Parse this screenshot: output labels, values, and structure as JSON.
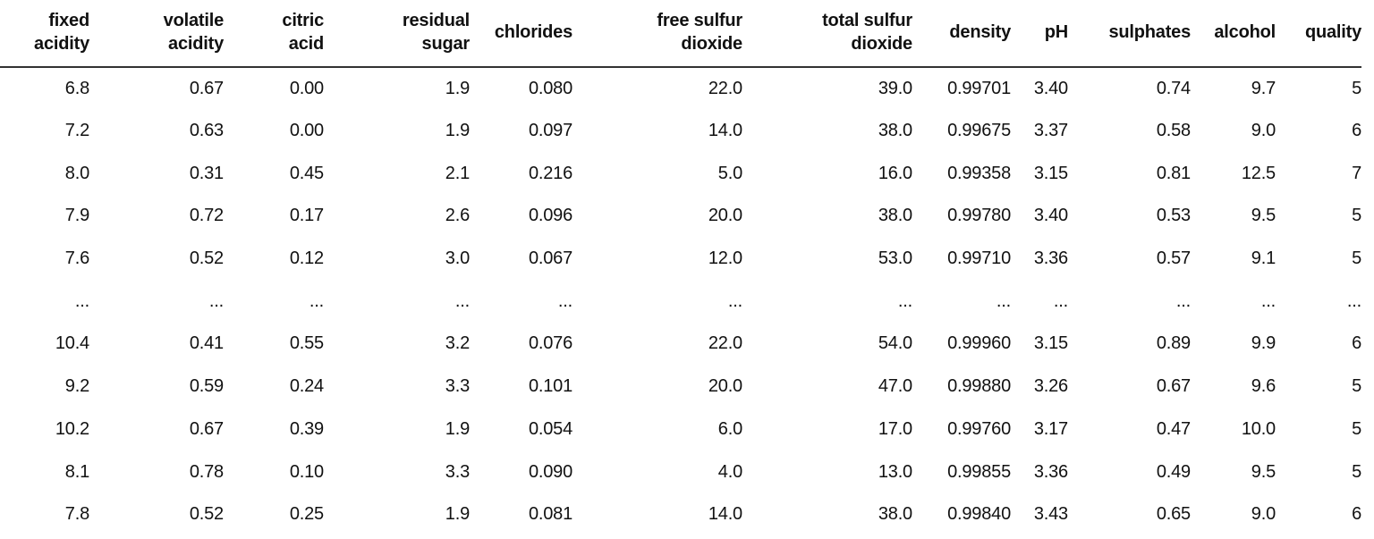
{
  "colors": {
    "background": "#ffffff",
    "text": "#111111",
    "header_rule": "#333333"
  },
  "chart_data": {
    "type": "table",
    "title": "",
    "columns": [
      "fixed acidity",
      "volatile acidity",
      "citric acid",
      "residual sugar",
      "chlorides",
      "free sulfur dioxide",
      "total sulfur dioxide",
      "density",
      "pH",
      "sulphates",
      "alcohol",
      "quality"
    ],
    "column_display": [
      "fixed\nacidity",
      "volatile\nacidity",
      "citric\nacid",
      "residual\nsugar",
      "chlorides",
      "free sulfur\ndioxide",
      "total sulfur\ndioxide",
      "density",
      "pH",
      "sulphates",
      "alcohol",
      "quality"
    ],
    "rows": [
      [
        "6.8",
        "0.67",
        "0.00",
        "1.9",
        "0.080",
        "22.0",
        "39.0",
        "0.99701",
        "3.40",
        "0.74",
        "9.7",
        "5"
      ],
      [
        "7.2",
        "0.63",
        "0.00",
        "1.9",
        "0.097",
        "14.0",
        "38.0",
        "0.99675",
        "3.37",
        "0.58",
        "9.0",
        "6"
      ],
      [
        "8.0",
        "0.31",
        "0.45",
        "2.1",
        "0.216",
        "5.0",
        "16.0",
        "0.99358",
        "3.15",
        "0.81",
        "12.5",
        "7"
      ],
      [
        "7.9",
        "0.72",
        "0.17",
        "2.6",
        "0.096",
        "20.0",
        "38.0",
        "0.99780",
        "3.40",
        "0.53",
        "9.5",
        "5"
      ],
      [
        "7.6",
        "0.52",
        "0.12",
        "3.0",
        "0.067",
        "12.0",
        "53.0",
        "0.99710",
        "3.36",
        "0.57",
        "9.1",
        "5"
      ],
      [
        "...",
        "...",
        "...",
        "...",
        "...",
        "...",
        "...",
        "...",
        "...",
        "...",
        "...",
        "..."
      ],
      [
        "10.4",
        "0.41",
        "0.55",
        "3.2",
        "0.076",
        "22.0",
        "54.0",
        "0.99960",
        "3.15",
        "0.89",
        "9.9",
        "6"
      ],
      [
        "9.2",
        "0.59",
        "0.24",
        "3.3",
        "0.101",
        "20.0",
        "47.0",
        "0.99880",
        "3.26",
        "0.67",
        "9.6",
        "5"
      ],
      [
        "10.2",
        "0.67",
        "0.39",
        "1.9",
        "0.054",
        "6.0",
        "17.0",
        "0.99760",
        "3.17",
        "0.47",
        "10.0",
        "5"
      ],
      [
        "8.1",
        "0.78",
        "0.10",
        "3.3",
        "0.090",
        "4.0",
        "13.0",
        "0.99855",
        "3.36",
        "0.49",
        "9.5",
        "5"
      ],
      [
        "7.8",
        "0.52",
        "0.25",
        "1.9",
        "0.081",
        "14.0",
        "38.0",
        "0.99840",
        "3.43",
        "0.65",
        "9.0",
        "6"
      ]
    ]
  }
}
